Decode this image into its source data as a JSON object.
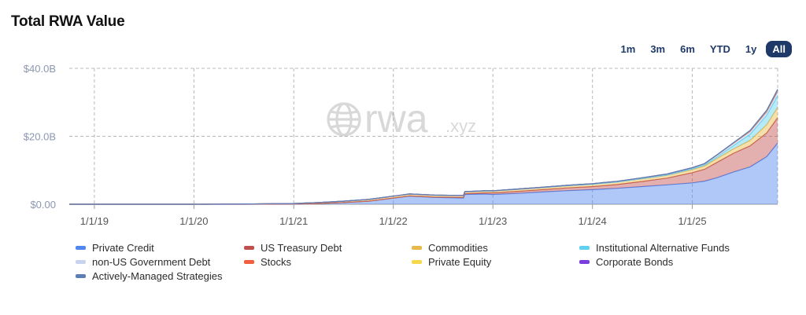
{
  "title": "Total RWA Value",
  "time_ranges": [
    {
      "label": "1m",
      "active": false
    },
    {
      "label": "3m",
      "active": false
    },
    {
      "label": "6m",
      "active": false
    },
    {
      "label": "YTD",
      "active": false
    },
    {
      "label": "1y",
      "active": false
    },
    {
      "label": "All",
      "active": true
    }
  ],
  "watermark": {
    "main": "rwa",
    "suffix": ".xyz",
    "icon": "globe-icon"
  },
  "chart_data": {
    "type": "area",
    "stacked": true,
    "title": "Total RWA Value",
    "xlabel": "",
    "ylabel": "",
    "x": [
      "2018-10-01",
      "2019-01-01",
      "2019-07-01",
      "2020-01-01",
      "2020-07-01",
      "2021-01-01",
      "2021-04-01",
      "2021-07-01",
      "2021-10-01",
      "2021-12-01",
      "2022-01-01",
      "2022-03-01",
      "2022-06-01",
      "2022-09-15",
      "2022-09-20",
      "2022-12-01",
      "2023-01-01",
      "2023-04-01",
      "2023-07-01",
      "2023-10-01",
      "2024-01-01",
      "2024-04-01",
      "2024-07-01",
      "2024-10-01",
      "2025-01-01",
      "2025-02-15",
      "2025-04-01",
      "2025-06-01",
      "2025-08-01",
      "2025-10-01",
      "2025-11-10"
    ],
    "x_ticks": [
      "1/1/19",
      "1/1/20",
      "1/1/21",
      "1/1/22",
      "1/1/23",
      "1/1/24",
      "1/1/25"
    ],
    "x_tick_dates": [
      "2019-01-01",
      "2020-01-01",
      "2021-01-01",
      "2022-01-01",
      "2023-01-01",
      "2024-01-01",
      "2025-01-01"
    ],
    "x_range": [
      "2018-10-01",
      "2025-11-10"
    ],
    "y_ticks": [
      "$0.00",
      "$20.0B",
      "$40.0B"
    ],
    "y_tick_values": [
      0,
      20,
      40
    ],
    "ylim": [
      0,
      40
    ],
    "y_unit": "billions USD",
    "grid": true,
    "legend_position": "bottom",
    "series": [
      {
        "name": "Private Credit",
        "color": "#4f86f0",
        "values": [
          0,
          0,
          0,
          0,
          0.01,
          0.05,
          0.2,
          0.5,
          0.9,
          1.5,
          1.8,
          2.4,
          2.0,
          1.8,
          2.9,
          3.0,
          2.9,
          3.2,
          3.6,
          4.0,
          4.3,
          4.7,
          5.2,
          5.7,
          6.3,
          6.8,
          7.8,
          9.5,
          11.0,
          14.0,
          18.0
        ]
      },
      {
        "name": "US Treasury Debt",
        "color": "#c0504d",
        "values": [
          0,
          0,
          0,
          0,
          0,
          0,
          0,
          0,
          0,
          0.01,
          0.02,
          0.05,
          0.1,
          0.2,
          0.2,
          0.35,
          0.45,
          0.6,
          0.7,
          0.8,
          0.9,
          1.1,
          1.5,
          2.0,
          3.0,
          3.5,
          4.5,
          5.5,
          6.2,
          7.0,
          7.5
        ]
      },
      {
        "name": "Commodities",
        "color": "#e8b94a",
        "values": [
          0,
          0,
          0,
          0,
          0.05,
          0.15,
          0.3,
          0.4,
          0.5,
          0.55,
          0.55,
          0.55,
          0.55,
          0.55,
          0.55,
          0.55,
          0.55,
          0.6,
          0.6,
          0.65,
          0.7,
          0.75,
          0.8,
          0.8,
          0.9,
          0.95,
          1.1,
          1.3,
          1.6,
          2.4,
          3.0
        ]
      },
      {
        "name": "Institutional Alternative Funds",
        "color": "#5fd0f0",
        "values": [
          0,
          0,
          0,
          0,
          0,
          0,
          0,
          0,
          0,
          0,
          0,
          0,
          0,
          0,
          0,
          0,
          0,
          0,
          0,
          0,
          0,
          0,
          0.05,
          0.1,
          0.2,
          0.3,
          0.5,
          1.0,
          1.8,
          2.8,
          3.5
        ]
      },
      {
        "name": "non-US Government Debt",
        "color": "#c8d4ee",
        "values": [
          0,
          0,
          0,
          0,
          0,
          0,
          0,
          0,
          0,
          0,
          0,
          0.02,
          0.03,
          0.04,
          0.04,
          0.05,
          0.06,
          0.08,
          0.1,
          0.12,
          0.15,
          0.2,
          0.25,
          0.3,
          0.35,
          0.4,
          0.5,
          0.6,
          0.7,
          0.85,
          1.0
        ]
      },
      {
        "name": "Stocks",
        "color": "#f0603e",
        "values": [
          0,
          0,
          0,
          0,
          0,
          0,
          0,
          0,
          0,
          0,
          0,
          0,
          0,
          0,
          0,
          0,
          0,
          0,
          0,
          0,
          0,
          0,
          0,
          0,
          0,
          0,
          0.05,
          0.1,
          0.2,
          0.3,
          0.4
        ]
      },
      {
        "name": "Private Equity",
        "color": "#f5d94a",
        "values": [
          0,
          0,
          0,
          0,
          0,
          0,
          0,
          0,
          0,
          0,
          0,
          0,
          0,
          0,
          0,
          0,
          0,
          0,
          0,
          0,
          0,
          0,
          0,
          0,
          0,
          0,
          0.02,
          0.05,
          0.1,
          0.15,
          0.2
        ]
      },
      {
        "name": "Corporate Bonds",
        "color": "#7b3fe0",
        "values": [
          0,
          0,
          0,
          0,
          0,
          0,
          0,
          0,
          0,
          0,
          0,
          0,
          0,
          0,
          0,
          0,
          0,
          0,
          0,
          0,
          0,
          0,
          0,
          0,
          0,
          0,
          0.02,
          0.05,
          0.08,
          0.1,
          0.15
        ]
      },
      {
        "name": "Actively-Managed Strategies",
        "color": "#5b7fb5",
        "values": [
          0,
          0,
          0,
          0,
          0,
          0,
          0,
          0,
          0,
          0,
          0,
          0,
          0,
          0,
          0,
          0,
          0,
          0,
          0,
          0,
          0,
          0,
          0,
          0,
          0,
          0,
          0.01,
          0.03,
          0.05,
          0.08,
          0.1
        ]
      }
    ]
  }
}
